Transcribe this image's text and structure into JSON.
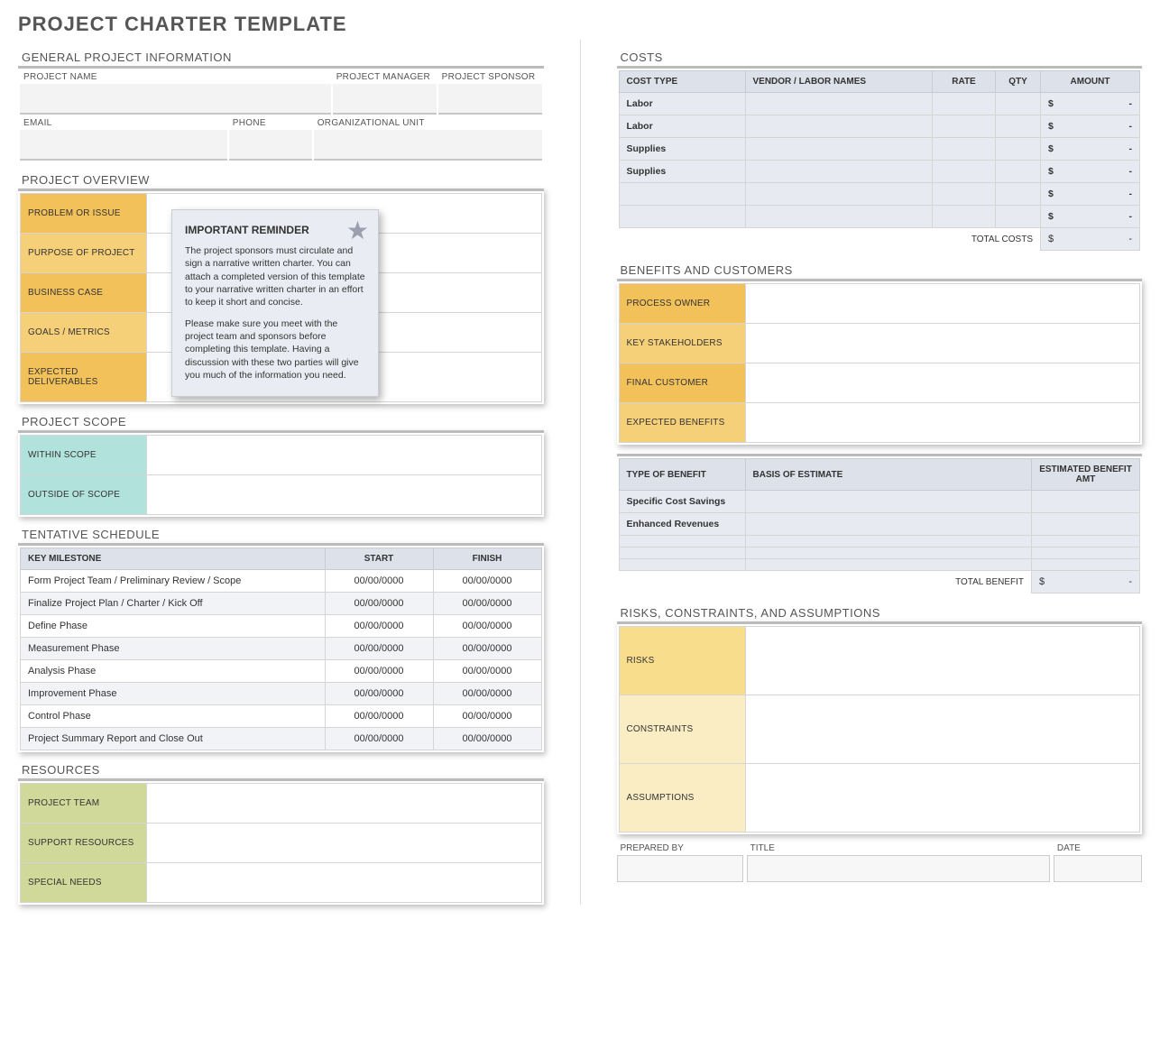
{
  "title": "PROJECT CHARTER TEMPLATE",
  "general": {
    "section": "GENERAL PROJECT INFORMATION",
    "project_name_label": "PROJECT NAME",
    "project_manager_label": "PROJECT MANAGER",
    "project_sponsor_label": "PROJECT SPONSOR",
    "email_label": "EMAIL",
    "phone_label": "PHONE",
    "org_unit_label": "ORGANIZATIONAL UNIT"
  },
  "overview": {
    "section": "PROJECT OVERVIEW",
    "rows": {
      "problem": "PROBLEM OR ISSUE",
      "purpose": "PURPOSE OF PROJECT",
      "business": "BUSINESS CASE",
      "goals": "GOALS / METRICS",
      "deliverables": "EXPECTED DELIVERABLES"
    },
    "callout": {
      "title": "IMPORTANT REMINDER",
      "p1": "The project sponsors must circulate and sign a narrative written charter. You can attach a completed version of this template to your narrative written charter in an effort to keep it short and concise.",
      "p2": "Please make sure you meet with the project team and sponsors before completing this template. Having a discussion with these two parties will give you much of the information you need."
    }
  },
  "scope": {
    "section": "PROJECT SCOPE",
    "within": "WITHIN SCOPE",
    "outside": "OUTSIDE OF SCOPE"
  },
  "schedule": {
    "section": "TENTATIVE SCHEDULE",
    "cols": {
      "milestone": "KEY MILESTONE",
      "start": "START",
      "finish": "FINISH"
    },
    "rows": [
      {
        "m": "Form Project Team / Preliminary Review / Scope",
        "s": "00/00/0000",
        "f": "00/00/0000"
      },
      {
        "m": "Finalize Project Plan / Charter / Kick Off",
        "s": "00/00/0000",
        "f": "00/00/0000"
      },
      {
        "m": "Define Phase",
        "s": "00/00/0000",
        "f": "00/00/0000"
      },
      {
        "m": "Measurement Phase",
        "s": "00/00/0000",
        "f": "00/00/0000"
      },
      {
        "m": "Analysis Phase",
        "s": "00/00/0000",
        "f": "00/00/0000"
      },
      {
        "m": "Improvement Phase",
        "s": "00/00/0000",
        "f": "00/00/0000"
      },
      {
        "m": "Control Phase",
        "s": "00/00/0000",
        "f": "00/00/0000"
      },
      {
        "m": "Project Summary Report and Close Out",
        "s": "00/00/0000",
        "f": "00/00/0000"
      }
    ]
  },
  "resources": {
    "section": "RESOURCES",
    "team": "PROJECT TEAM",
    "support": "SUPPORT RESOURCES",
    "special": "SPECIAL NEEDS"
  },
  "costs": {
    "section": "COSTS",
    "cols": {
      "type": "COST TYPE",
      "vendor": "VENDOR / LABOR NAMES",
      "rate": "RATE",
      "qty": "QTY",
      "amount": "AMOUNT"
    },
    "rows": [
      {
        "type": "Labor",
        "amount_prefix": "$",
        "amount_val": "-"
      },
      {
        "type": "Labor",
        "amount_prefix": "$",
        "amount_val": "-"
      },
      {
        "type": "Supplies",
        "amount_prefix": "$",
        "amount_val": "-"
      },
      {
        "type": "Supplies",
        "amount_prefix": "$",
        "amount_val": "-"
      },
      {
        "type": "",
        "amount_prefix": "$",
        "amount_val": "-"
      },
      {
        "type": "",
        "amount_prefix": "$",
        "amount_val": "-"
      }
    ],
    "total_label": "TOTAL COSTS",
    "total_prefix": "$",
    "total_val": "-"
  },
  "benefits": {
    "section": "BENEFITS AND CUSTOMERS",
    "owner": "PROCESS OWNER",
    "stake": "KEY STAKEHOLDERS",
    "final": "FINAL CUSTOMER",
    "expected": "EXPECTED BENEFITS",
    "table_cols": {
      "type": "TYPE OF BENEFIT",
      "basis": "BASIS OF ESTIMATE",
      "amt": "ESTIMATED BENEFIT AMT"
    },
    "table_rows": [
      {
        "type": "Specific Cost Savings"
      },
      {
        "type": "Enhanced Revenues"
      },
      {
        "type": ""
      },
      {
        "type": ""
      },
      {
        "type": ""
      }
    ],
    "total_label": "TOTAL BENEFIT",
    "total_prefix": "$",
    "total_val": "-"
  },
  "risks": {
    "section": "RISKS, CONSTRAINTS, AND ASSUMPTIONS",
    "risks": "RISKS",
    "constraints": "CONSTRAINTS",
    "assumptions": "ASSUMPTIONS"
  },
  "signoff": {
    "prepared": "PREPARED BY",
    "title": "TITLE",
    "date": "DATE"
  },
  "colors": {
    "amber1": "#f2c15a",
    "amber2": "#f6cf79",
    "teal": "#b1e2dc",
    "olive": "#d0d89a",
    "gold": "#f7dd8c",
    "cream": "#faedc3",
    "header_bg": "#dde1e9",
    "alt_row": "#f2f3f6",
    "accent_border": "#bbbbbb"
  }
}
